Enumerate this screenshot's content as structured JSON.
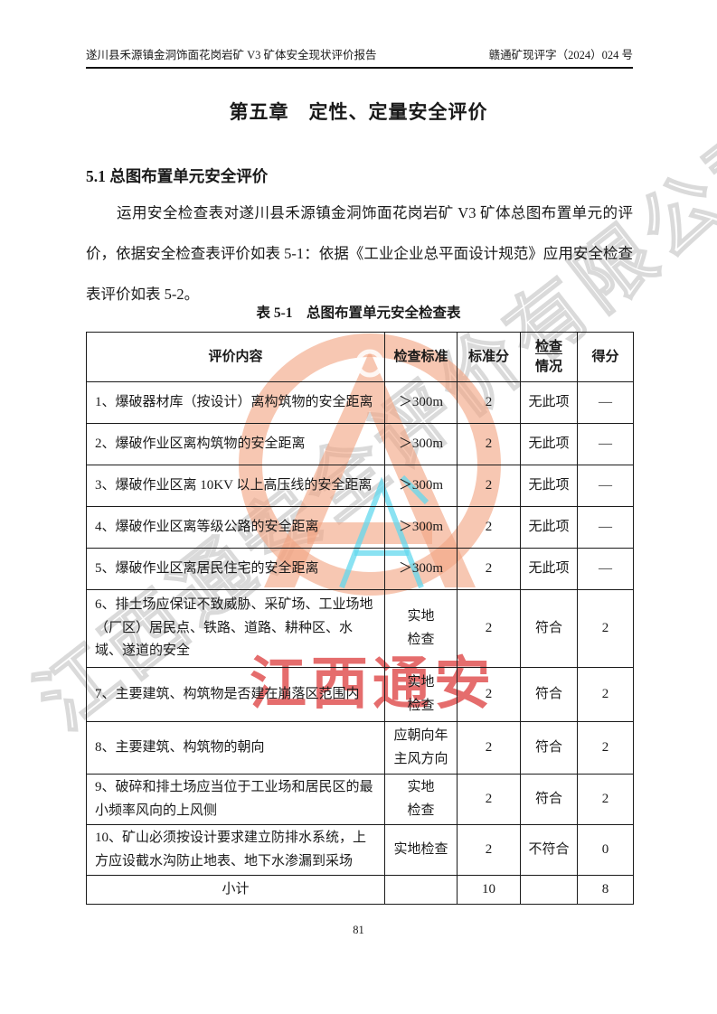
{
  "page": {
    "header_left": "遂川县禾源镇金洞饰面花岗岩矿 V3 矿体安全现状评价报告",
    "header_right": "赣通矿现评字（2024）024 号",
    "chapter_title": "第五章　定性、定量安全评价",
    "section_heading": "5.1 总图布置单元安全评价",
    "paragraph": "运用安全检查表对遂川县禾源镇金洞饰面花岗岩矿 V3 矿体总图布置单元的评价，依据安全检查表评价如表 5-1：依据《工业企业总平面设计规范》应用安全检查表评价如表 5-2。",
    "table_caption": "表 5-1　总图布置单元安全检查表",
    "page_number": "81"
  },
  "watermark": {
    "company_short": "江西通安",
    "company_full": "江西通安全评价有限公司",
    "logo_letter": "A",
    "colors": {
      "ring_orange": "#F2A482",
      "cyan": "#63D8EE",
      "red": "#D82222",
      "gray": "#A8A8A8"
    }
  },
  "table": {
    "headers": [
      "评价内容",
      "检查标准",
      "标准分",
      "检查\n情况",
      "得分"
    ],
    "rows": [
      {
        "content": "1、爆破器材库（按设计）离构筑物的安全距离",
        "standard": "＞300m",
        "std_score": "2",
        "status": "无此项",
        "score": "—"
      },
      {
        "content": "2、爆破作业区离构筑物的安全距离",
        "standard": "＞300m",
        "std_score": "2",
        "status": "无此项",
        "score": "—"
      },
      {
        "content": "3、爆破作业区离 10KV 以上高压线的安全距离",
        "standard": "＞300m",
        "std_score": "2",
        "status": "无此项",
        "score": "—"
      },
      {
        "content": "4、爆破作业区离等级公路的安全距离",
        "standard": "＞300m",
        "std_score": "2",
        "status": "无此项",
        "score": "—"
      },
      {
        "content": "5、爆破作业区离居民住宅的安全距离",
        "standard": "＞300m",
        "std_score": "2",
        "status": "无此项",
        "score": "—"
      },
      {
        "content": "6、排土场应保证不致威胁、采矿场、工业场地（厂区）居民点、铁路、道路、耕种区、水域、遂道的安全",
        "standard": "实地\n检查",
        "std_score": "2",
        "status": "符合",
        "score": "2"
      },
      {
        "content": "7、主要建筑、构筑物是否建在崩落区范围内",
        "standard": "实地\n检查",
        "std_score": "2",
        "status": "符合",
        "score": "2"
      },
      {
        "content": "8、主要建筑、构筑物的朝向",
        "standard": "应朝向年\n主风方向",
        "std_score": "2",
        "status": "符合",
        "score": "2"
      },
      {
        "content": "9、破碎和排土场应当位于工业场和居民区的最小频率风向的上风侧",
        "standard": "实地\n检查",
        "std_score": "2",
        "status": "符合",
        "score": "2"
      },
      {
        "content": "10、矿山必须按设计要求建立防排水系统，上方应设截水沟防止地表、地下水渗漏到采场",
        "standard": "实地检查",
        "std_score": "2",
        "status": "不符合",
        "score": "0"
      },
      {
        "content": "小计",
        "standard": "",
        "std_score": "10",
        "status": "",
        "score": "8",
        "subtotal": true
      }
    ]
  }
}
